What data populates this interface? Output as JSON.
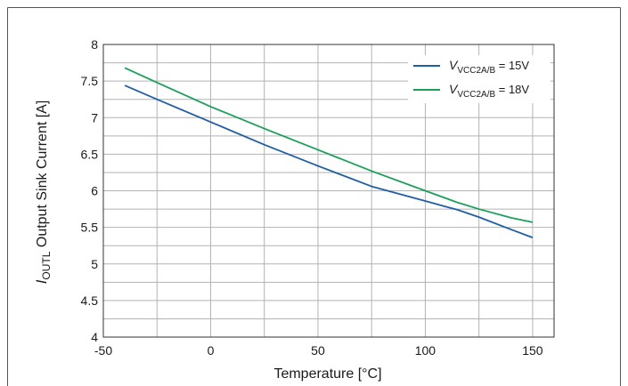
{
  "chart_data": {
    "type": "line",
    "xlabel": "Temperature [°C]",
    "ylabel": {
      "var": "I",
      "sub": "OUTL",
      "rest": " Output Sink Current [A]"
    },
    "xlim": [
      -50,
      160
    ],
    "ylim": [
      4,
      8
    ],
    "xticks": [
      -50,
      0,
      50,
      100,
      150
    ],
    "xgrid": [
      -50,
      -25,
      0,
      25,
      50,
      75,
      100,
      125,
      150
    ],
    "yticks": [
      4,
      4.5,
      5,
      5.5,
      6,
      6.5,
      7,
      7.5,
      8
    ],
    "ygrid": [
      4,
      4.25,
      4.5,
      4.75,
      5,
      5.25,
      5.5,
      5.75,
      6,
      6.25,
      6.5,
      6.75,
      7,
      7.25,
      7.5,
      7.75,
      8
    ],
    "grid": true,
    "legend_position": "top-right",
    "series": [
      {
        "name": "VVCC2A/B = 15V",
        "legend": {
          "var": "V",
          "sub": "VCC2A/B",
          "rest": " = 15V"
        },
        "color": "#1f5ea8",
        "x": [
          -40,
          -25,
          0,
          25,
          50,
          75,
          100,
          115,
          125,
          140,
          150
        ],
        "y": [
          7.44,
          7.25,
          6.94,
          6.63,
          6.34,
          6.06,
          5.86,
          5.74,
          5.64,
          5.47,
          5.36
        ]
      },
      {
        "name": "VVCC2A/B = 18V",
        "legend": {
          "var": "V",
          "sub": "VCC2A/B",
          "rest": " = 18V"
        },
        "color": "#1aa05a",
        "x": [
          -40,
          -25,
          0,
          25,
          50,
          75,
          100,
          115,
          125,
          140,
          150
        ],
        "y": [
          7.68,
          7.48,
          7.15,
          6.85,
          6.56,
          6.27,
          6.0,
          5.84,
          5.75,
          5.63,
          5.57
        ]
      }
    ]
  }
}
